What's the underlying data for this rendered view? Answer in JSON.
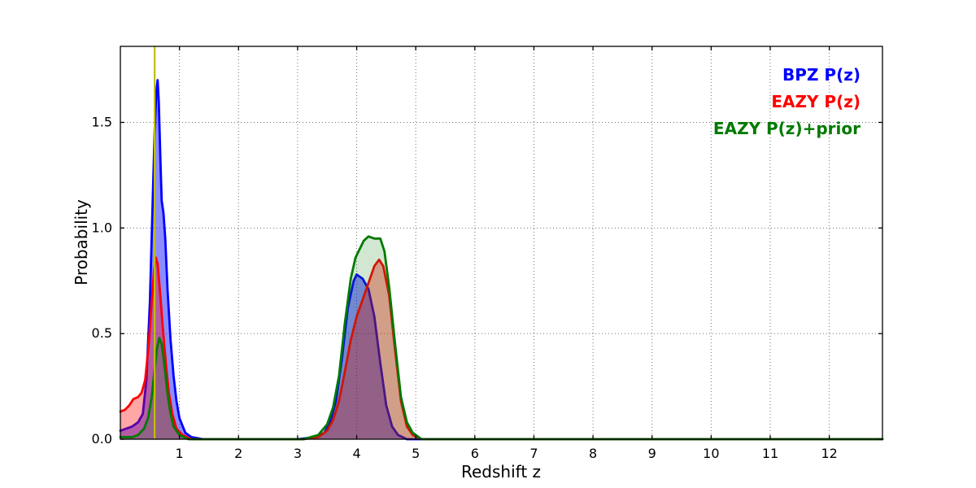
{
  "figure": {
    "background": "#ffffff"
  },
  "chart_data": {
    "type": "line",
    "title": "",
    "xlabel": "Redshift z",
    "ylabel": "Probability",
    "xlim": [
      0,
      12.9
    ],
    "ylim": [
      0,
      1.86
    ],
    "xticks": [
      1,
      2,
      3,
      4,
      5,
      6,
      7,
      8,
      9,
      10,
      11,
      12
    ],
    "yticks": [
      0.0,
      0.5,
      1.0,
      1.5
    ],
    "ytick_labels": [
      "0.0",
      "0.5",
      "1.0",
      "1.5"
    ],
    "grid": "dotted",
    "legend_position": "upper right",
    "vline": {
      "x": 0.58,
      "color": "#bfbf00",
      "label": "vertical marker line"
    },
    "series": [
      {
        "name": "BPZ P(z)",
        "color": "#0000ff",
        "fill_opacity": 0.45,
        "points": [
          [
            0.0,
            0.04
          ],
          [
            0.1,
            0.05
          ],
          [
            0.2,
            0.06
          ],
          [
            0.3,
            0.08
          ],
          [
            0.38,
            0.12
          ],
          [
            0.44,
            0.28
          ],
          [
            0.5,
            0.65
          ],
          [
            0.55,
            1.15
          ],
          [
            0.58,
            1.45
          ],
          [
            0.61,
            1.65
          ],
          [
            0.63,
            1.7
          ],
          [
            0.65,
            1.6
          ],
          [
            0.68,
            1.3
          ],
          [
            0.7,
            1.13
          ],
          [
            0.73,
            1.07
          ],
          [
            0.76,
            0.95
          ],
          [
            0.8,
            0.7
          ],
          [
            0.85,
            0.47
          ],
          [
            0.9,
            0.3
          ],
          [
            0.95,
            0.18
          ],
          [
            1.0,
            0.1
          ],
          [
            1.1,
            0.03
          ],
          [
            1.2,
            0.01
          ],
          [
            1.4,
            0.0
          ],
          [
            3.0,
            0.0
          ],
          [
            3.3,
            0.01
          ],
          [
            3.45,
            0.03
          ],
          [
            3.55,
            0.08
          ],
          [
            3.65,
            0.18
          ],
          [
            3.75,
            0.38
          ],
          [
            3.85,
            0.62
          ],
          [
            3.95,
            0.75
          ],
          [
            4.0,
            0.78
          ],
          [
            4.1,
            0.76
          ],
          [
            4.2,
            0.71
          ],
          [
            4.3,
            0.58
          ],
          [
            4.4,
            0.36
          ],
          [
            4.5,
            0.16
          ],
          [
            4.6,
            0.06
          ],
          [
            4.7,
            0.02
          ],
          [
            4.85,
            0.0
          ],
          [
            6.0,
            0.0
          ],
          [
            12.9,
            0.0
          ]
        ]
      },
      {
        "name": "EAZY P(z)",
        "color": "#ff0000",
        "fill_opacity": 0.35,
        "points": [
          [
            0.0,
            0.13
          ],
          [
            0.08,
            0.14
          ],
          [
            0.15,
            0.16
          ],
          [
            0.22,
            0.19
          ],
          [
            0.3,
            0.2
          ],
          [
            0.36,
            0.22
          ],
          [
            0.42,
            0.28
          ],
          [
            0.48,
            0.45
          ],
          [
            0.53,
            0.65
          ],
          [
            0.57,
            0.8
          ],
          [
            0.6,
            0.86
          ],
          [
            0.63,
            0.83
          ],
          [
            0.67,
            0.7
          ],
          [
            0.72,
            0.52
          ],
          [
            0.77,
            0.36
          ],
          [
            0.82,
            0.22
          ],
          [
            0.88,
            0.12
          ],
          [
            0.95,
            0.05
          ],
          [
            1.05,
            0.02
          ],
          [
            1.2,
            0.0
          ],
          [
            3.1,
            0.0
          ],
          [
            3.35,
            0.01
          ],
          [
            3.5,
            0.04
          ],
          [
            3.6,
            0.09
          ],
          [
            3.7,
            0.18
          ],
          [
            3.8,
            0.32
          ],
          [
            3.9,
            0.47
          ],
          [
            4.0,
            0.58
          ],
          [
            4.1,
            0.66
          ],
          [
            4.2,
            0.74
          ],
          [
            4.3,
            0.82
          ],
          [
            4.38,
            0.85
          ],
          [
            4.45,
            0.82
          ],
          [
            4.55,
            0.68
          ],
          [
            4.65,
            0.42
          ],
          [
            4.75,
            0.18
          ],
          [
            4.85,
            0.06
          ],
          [
            4.95,
            0.02
          ],
          [
            5.1,
            0.0
          ],
          [
            6.0,
            0.0
          ],
          [
            12.9,
            0.0
          ]
        ]
      },
      {
        "name": "EAZY P(z)+prior",
        "color": "#007a00",
        "fill_opacity": 0.18,
        "points": [
          [
            0.0,
            0.01
          ],
          [
            0.2,
            0.01
          ],
          [
            0.3,
            0.02
          ],
          [
            0.4,
            0.05
          ],
          [
            0.47,
            0.1
          ],
          [
            0.53,
            0.2
          ],
          [
            0.58,
            0.33
          ],
          [
            0.62,
            0.43
          ],
          [
            0.66,
            0.48
          ],
          [
            0.7,
            0.45
          ],
          [
            0.75,
            0.34
          ],
          [
            0.8,
            0.21
          ],
          [
            0.85,
            0.12
          ],
          [
            0.9,
            0.06
          ],
          [
            1.0,
            0.02
          ],
          [
            1.15,
            0.0
          ],
          [
            3.1,
            0.0
          ],
          [
            3.35,
            0.02
          ],
          [
            3.5,
            0.07
          ],
          [
            3.6,
            0.15
          ],
          [
            3.7,
            0.3
          ],
          [
            3.8,
            0.55
          ],
          [
            3.9,
            0.76
          ],
          [
            3.98,
            0.86
          ],
          [
            4.05,
            0.9
          ],
          [
            4.12,
            0.94
          ],
          [
            4.2,
            0.96
          ],
          [
            4.3,
            0.95
          ],
          [
            4.4,
            0.95
          ],
          [
            4.47,
            0.89
          ],
          [
            4.55,
            0.72
          ],
          [
            4.65,
            0.45
          ],
          [
            4.75,
            0.2
          ],
          [
            4.85,
            0.08
          ],
          [
            4.95,
            0.03
          ],
          [
            5.1,
            0.0
          ],
          [
            6.0,
            0.0
          ],
          [
            12.9,
            0.0
          ]
        ]
      }
    ]
  }
}
